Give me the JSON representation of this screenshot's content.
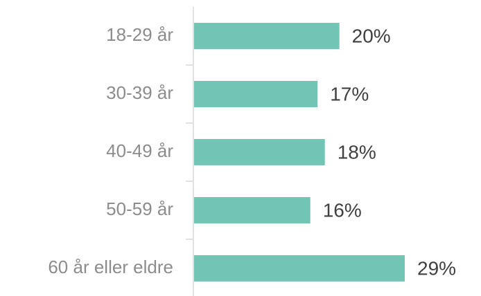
{
  "chart_data": {
    "type": "bar",
    "orientation": "horizontal",
    "categories": [
      "18-29 år",
      "30-39 år",
      "40-49 år",
      "50-59 år",
      "60 år eller eldre"
    ],
    "values": [
      20,
      17,
      18,
      16,
      29
    ],
    "value_labels": [
      "20%",
      "17%",
      "18%",
      "16%",
      "29%"
    ],
    "color": "#72c5b4"
  }
}
